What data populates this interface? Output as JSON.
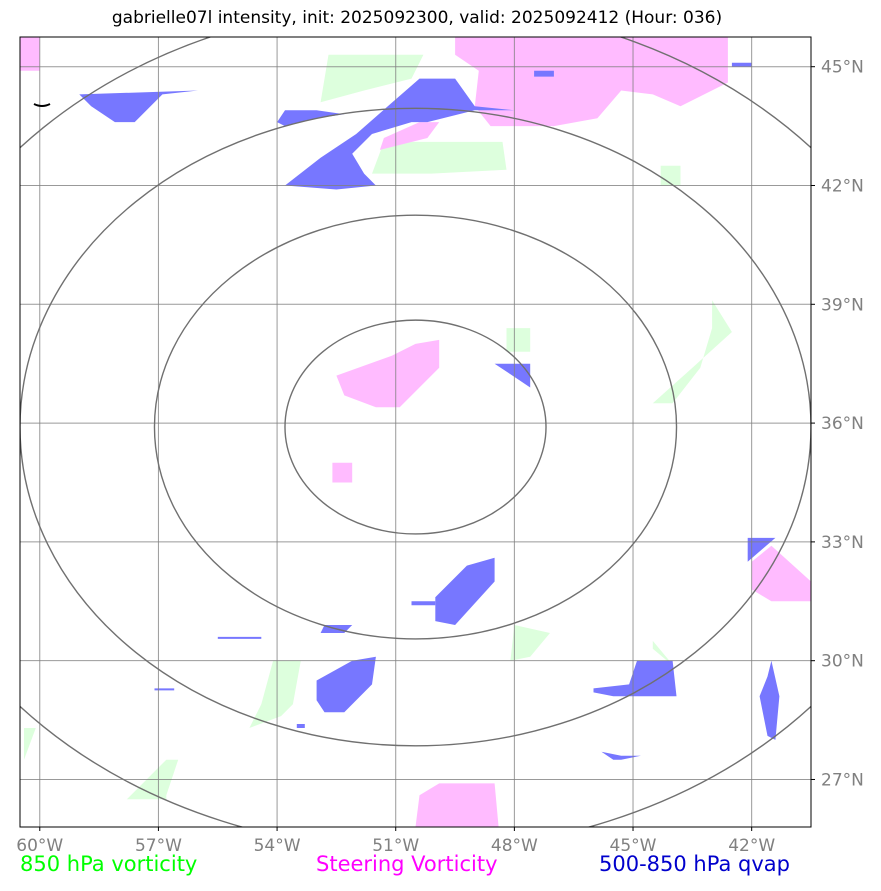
{
  "title": "gabrielle07l intensity, init: 2025092300, valid: 2025092412 (Hour: 036)",
  "legend": {
    "vort850": {
      "label": "850 hPa vorticity",
      "color": "#00ff00"
    },
    "steering": {
      "label": "Steering Vorticity",
      "color": "#ff00ff"
    },
    "qvap": {
      "label": "500-850 hPa qvap",
      "color": "#0000cc"
    }
  },
  "map": {
    "lon_range": [
      -60.5,
      -40.5
    ],
    "lat_range": [
      25.8,
      45.75
    ],
    "lon_ticks": [
      {
        "value": -60,
        "label": "60°W"
      },
      {
        "value": -57,
        "label": "57°W"
      },
      {
        "value": -54,
        "label": "54°W"
      },
      {
        "value": -51,
        "label": "51°W"
      },
      {
        "value": -48,
        "label": "48°W"
      },
      {
        "value": -45,
        "label": "45°W"
      },
      {
        "value": -42,
        "label": "42°W"
      }
    ],
    "lat_ticks": [
      {
        "value": 45,
        "label": "45°N"
      },
      {
        "value": 42,
        "label": "42°N"
      },
      {
        "value": 39,
        "label": "39°N"
      },
      {
        "value": 36,
        "label": "36°N"
      },
      {
        "value": 33,
        "label": "33°N"
      },
      {
        "value": 30,
        "label": "30°N"
      },
      {
        "value": 27,
        "label": "27°N"
      }
    ],
    "center": {
      "lon": -50.5,
      "lat": 35.9
    },
    "range_rings": [
      {
        "dlon": 3.3,
        "dlat": 2.7
      },
      {
        "dlon": 6.6,
        "dlat": 5.35
      },
      {
        "dlon": 10.0,
        "dlat": 8.05
      },
      {
        "dlon": 13.3,
        "dlat": 10.7
      }
    ],
    "colors": {
      "vort850_fill": "#ddffdd",
      "steering_fill": "#ffbbff",
      "qvap_fill": "#7777ff",
      "grid": "#808080",
      "ring": "#707070"
    },
    "vort850_regions": [
      [
        [
          -52.7,
          45.3
        ],
        [
          -50.3,
          45.3
        ],
        [
          -50.6,
          44.7
        ],
        [
          -51.8,
          44.4
        ],
        [
          -52.9,
          44.1
        ]
      ],
      [
        [
          -51.3,
          43.1
        ],
        [
          -48.3,
          43.1
        ],
        [
          -48.2,
          42.4
        ],
        [
          -50.1,
          42.3
        ],
        [
          -51.6,
          42.3
        ]
      ],
      [
        [
          -44.3,
          42.0
        ],
        [
          -43.8,
          42.0
        ],
        [
          -43.8,
          42.5
        ],
        [
          -44.3,
          42.5
        ]
      ],
      [
        [
          -48.2,
          38.4
        ],
        [
          -47.6,
          38.4
        ],
        [
          -47.6,
          37.8
        ],
        [
          -48.2,
          37.8
        ]
      ],
      [
        [
          -43.0,
          39.1
        ],
        [
          -42.5,
          38.3
        ],
        [
          -43.5,
          37.4
        ],
        [
          -44.5,
          36.5
        ],
        [
          -44.0,
          36.5
        ],
        [
          -43.3,
          37.4
        ],
        [
          -43.0,
          38.4
        ]
      ],
      [
        [
          -48.0,
          30.9
        ],
        [
          -47.1,
          30.7
        ],
        [
          -47.6,
          30.1
        ],
        [
          -48.1,
          30.0
        ]
      ],
      [
        [
          -44.5,
          30.5
        ],
        [
          -44.0,
          29.9
        ],
        [
          -43.9,
          29.8
        ],
        [
          -44.5,
          30.3
        ]
      ],
      [
        [
          -54.1,
          30.0
        ],
        [
          -53.4,
          30.0
        ],
        [
          -53.6,
          28.9
        ],
        [
          -53.9,
          28.6
        ],
        [
          -54.7,
          28.3
        ],
        [
          -54.4,
          28.9
        ]
      ],
      [
        [
          -56.8,
          27.5
        ],
        [
          -56.5,
          27.5
        ],
        [
          -56.8,
          26.6
        ],
        [
          -56.8,
          26.5
        ],
        [
          -57.8,
          26.5
        ],
        [
          -57.3,
          27.0
        ]
      ],
      [
        [
          -60.4,
          28.3
        ],
        [
          -60.1,
          28.3
        ],
        [
          -60.4,
          27.5
        ]
      ]
    ],
    "steering_regions": [
      [
        [
          -60.5,
          45.75
        ],
        [
          -60.0,
          45.75
        ],
        [
          -60.0,
          44.9
        ],
        [
          -60.5,
          44.9
        ]
      ],
      [
        [
          -49.5,
          45.75
        ],
        [
          -42.6,
          45.75
        ],
        [
          -42.6,
          44.6
        ],
        [
          -43.8,
          44.0
        ],
        [
          -44.5,
          44.3
        ],
        [
          -45.3,
          44.4
        ],
        [
          -45.9,
          43.7
        ],
        [
          -47.0,
          43.5
        ],
        [
          -48.6,
          43.5
        ],
        [
          -49.0,
          44.0
        ],
        [
          -48.9,
          44.9
        ],
        [
          -49.5,
          45.3
        ]
      ],
      [
        [
          -50.4,
          43.6
        ],
        [
          -49.9,
          43.6
        ],
        [
          -50.2,
          43.2
        ],
        [
          -51.4,
          42.9
        ],
        [
          -51.3,
          43.2
        ]
      ],
      [
        [
          -52.5,
          37.2
        ],
        [
          -51.1,
          37.7
        ],
        [
          -50.5,
          38.0
        ],
        [
          -49.9,
          38.1
        ],
        [
          -49.9,
          37.4
        ],
        [
          -50.9,
          36.4
        ],
        [
          -51.5,
          36.4
        ],
        [
          -52.3,
          36.7
        ]
      ],
      [
        [
          -52.6,
          35.0
        ],
        [
          -52.1,
          35.0
        ],
        [
          -52.1,
          34.5
        ],
        [
          -52.6,
          34.5
        ]
      ],
      [
        [
          -42.0,
          32.5
        ],
        [
          -41.5,
          32.9
        ],
        [
          -40.5,
          32.0
        ],
        [
          -40.5,
          31.5
        ],
        [
          -41.5,
          31.5
        ],
        [
          -42.0,
          31.8
        ],
        [
          -42.0,
          32.2
        ]
      ],
      [
        [
          -50.4,
          26.6
        ],
        [
          -49.9,
          26.9
        ],
        [
          -48.5,
          26.9
        ],
        [
          -48.4,
          25.8
        ],
        [
          -50.5,
          25.8
        ]
      ]
    ],
    "qvap_regions": [
      [
        [
          -59.0,
          44.3
        ],
        [
          -56.0,
          44.4
        ],
        [
          -56.9,
          44.3
        ],
        [
          -57.6,
          43.6
        ],
        [
          -58.1,
          43.6
        ],
        [
          -58.7,
          44.0
        ]
      ],
      [
        [
          -53.8,
          43.9
        ],
        [
          -53.0,
          43.9
        ],
        [
          -52.3,
          43.8
        ],
        [
          -53.0,
          43.7
        ],
        [
          -53.8,
          43.5
        ],
        [
          -54.0,
          43.6
        ]
      ],
      [
        [
          -53.8,
          42.0
        ],
        [
          -52.9,
          42.7
        ],
        [
          -52.0,
          43.3
        ],
        [
          -51.2,
          44.0
        ],
        [
          -50.4,
          44.7
        ],
        [
          -49.5,
          44.7
        ],
        [
          -49.0,
          44.0
        ],
        [
          -48.0,
          43.9
        ],
        [
          -49.0,
          43.9
        ],
        [
          -50.2,
          43.6
        ],
        [
          -50.6,
          43.6
        ],
        [
          -51.6,
          43.3
        ],
        [
          -52.1,
          42.8
        ],
        [
          -51.8,
          42.3
        ],
        [
          -51.5,
          42.0
        ],
        [
          -52.5,
          41.9
        ]
      ],
      [
        [
          -47.5,
          44.9
        ],
        [
          -47.0,
          44.9
        ],
        [
          -47.0,
          44.75
        ],
        [
          -47.5,
          44.75
        ]
      ],
      [
        [
          -42.5,
          45.1
        ],
        [
          -42.0,
          45.1
        ],
        [
          -42.0,
          45.0
        ],
        [
          -42.5,
          45.0
        ]
      ],
      [
        [
          -48.5,
          37.5
        ],
        [
          -47.6,
          37.5
        ],
        [
          -47.6,
          36.9
        ],
        [
          -47.9,
          37.1
        ]
      ],
      [
        [
          -41.6,
          33.1
        ],
        [
          -41.4,
          33.1
        ],
        [
          -42.1,
          32.5
        ],
        [
          -42.1,
          33.1
        ]
      ],
      [
        [
          -50.0,
          31.6
        ],
        [
          -49.2,
          32.4
        ],
        [
          -48.5,
          32.6
        ],
        [
          -48.5,
          32.0
        ],
        [
          -49.5,
          30.9
        ],
        [
          -50.0,
          31.0
        ]
      ],
      [
        [
          -52.8,
          30.9
        ],
        [
          -52.1,
          30.9
        ],
        [
          -52.3,
          30.7
        ],
        [
          -52.9,
          30.7
        ]
      ],
      [
        [
          -50.6,
          31.5
        ],
        [
          -50.0,
          31.5
        ],
        [
          -50.0,
          31.4
        ],
        [
          -50.6,
          31.4
        ]
      ],
      [
        [
          -53.0,
          29.5
        ],
        [
          -52.1,
          30.0
        ],
        [
          -51.5,
          30.1
        ],
        [
          -51.6,
          29.4
        ],
        [
          -52.3,
          28.7
        ],
        [
          -52.8,
          28.7
        ],
        [
          -53.0,
          29.0
        ]
      ],
      [
        [
          -44.6,
          30.0
        ],
        [
          -44.0,
          30.0
        ],
        [
          -43.9,
          29.1
        ],
        [
          -44.5,
          29.1
        ],
        [
          -45.5,
          29.1
        ],
        [
          -46.0,
          29.2
        ],
        [
          -46.0,
          29.3
        ],
        [
          -45.1,
          29.4
        ],
        [
          -44.9,
          30.0
        ]
      ],
      [
        [
          -45.8,
          27.7
        ],
        [
          -45.3,
          27.6
        ],
        [
          -44.8,
          27.6
        ],
        [
          -45.3,
          27.5
        ],
        [
          -45.5,
          27.5
        ]
      ],
      [
        [
          -41.5,
          30.0
        ],
        [
          -41.3,
          29.1
        ],
        [
          -41.4,
          28.0
        ],
        [
          -41.6,
          28.1
        ],
        [
          -41.8,
          29.1
        ],
        [
          -41.6,
          29.6
        ]
      ],
      [
        [
          -55.5,
          30.6
        ],
        [
          -54.4,
          30.6
        ],
        [
          -54.4,
          30.55
        ],
        [
          -55.5,
          30.55
        ]
      ],
      [
        [
          -57.1,
          29.3
        ],
        [
          -56.6,
          29.3
        ],
        [
          -56.6,
          29.25
        ],
        [
          -57.1,
          29.25
        ]
      ],
      [
        [
          -53.5,
          28.4
        ],
        [
          -53.3,
          28.4
        ],
        [
          -53.3,
          28.3
        ],
        [
          -53.5,
          28.3
        ]
      ]
    ]
  }
}
